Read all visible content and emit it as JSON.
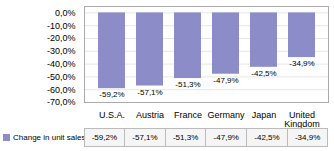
{
  "chart_data": {
    "type": "bar",
    "categories": [
      "U.S.A.",
      "Austria",
      "France",
      "Germany",
      "Japan",
      "United\nKingdom"
    ],
    "series": [
      {
        "name": "Change in unit sales",
        "color": "#8B8CC8",
        "values": [
          -59.2,
          -57.1,
          -51.3,
          -47.9,
          -42.5,
          -34.9
        ],
        "value_labels": [
          "-59,2%",
          "-57,1%",
          "-51,3%",
          "-47,9%",
          "-42,5%",
          "-34,9%"
        ]
      }
    ],
    "ylim": [
      -70,
      5
    ],
    "yticks": [
      {
        "value": 0,
        "label": "0,0%"
      },
      {
        "value": -10,
        "label": "-10,0%"
      },
      {
        "value": -20,
        "label": "-20,0%"
      },
      {
        "value": -30,
        "label": "-30,0%"
      },
      {
        "value": -40,
        "label": "-40,0%"
      },
      {
        "value": -50,
        "label": "-50,0%"
      },
      {
        "value": -60,
        "label": "-60,0%"
      },
      {
        "value": -70,
        "label": "-70,0%"
      }
    ],
    "grid": true,
    "data_labels": true,
    "legend": "bottom"
  }
}
